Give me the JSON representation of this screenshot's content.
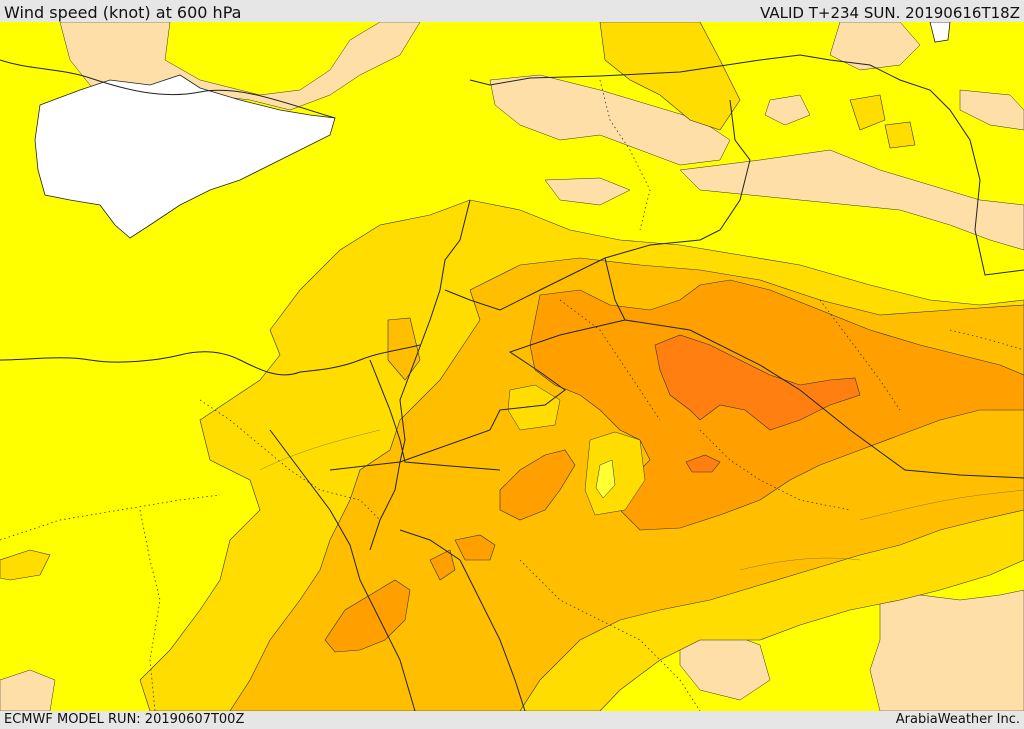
{
  "header": {
    "title": "Wind speed (knot) at 600 hPa",
    "valid": "VALID T+234 SUN. 20190616T18Z"
  },
  "footer": {
    "model_run": "ECMWF MODEL RUN: 20190607T00Z",
    "credit": "ArabiaWeather Inc."
  },
  "map": {
    "field": "wind speed",
    "level": "600 hPa",
    "units": "knot",
    "colors": {
      "weak": "#ffdfa8",
      "yellow": "#ffff00",
      "gold": "#ffdd00",
      "amber": "#ffbf00",
      "orange": "#ffa000",
      "dark_orange": "#ff8010",
      "sea": "#ffffff",
      "contour": "#222222"
    }
  }
}
